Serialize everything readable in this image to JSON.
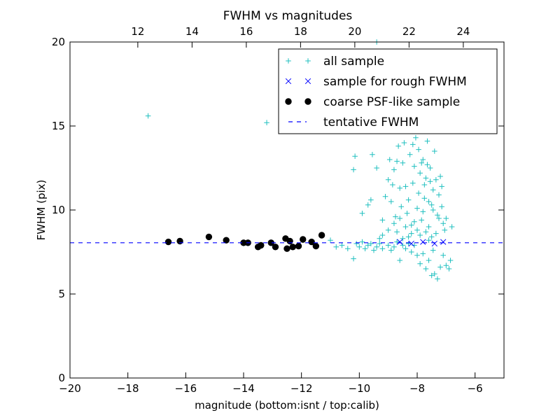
{
  "chart_data": {
    "type": "scatter",
    "title": "FWHM vs magnitudes",
    "xlabel": "magnitude (bottom:isnt / top:calib)",
    "ylabel": "FWHM (pix)",
    "xlim": [
      -20,
      -5
    ],
    "ylim": [
      0,
      20
    ],
    "top_xlim": [
      9.5,
      25.5
    ],
    "x_ticks": [
      "−20",
      "−18",
      "−16",
      "−14",
      "−12",
      "−10",
      "−8",
      "−6"
    ],
    "x_tick_values": [
      -20,
      -18,
      -16,
      -14,
      -12,
      -10,
      -8,
      -6
    ],
    "y_ticks": [
      "0",
      "5",
      "10",
      "15",
      "20"
    ],
    "y_tick_values": [
      0,
      5,
      10,
      15,
      20
    ],
    "top_x_ticks": [
      "12",
      "14",
      "16",
      "18",
      "20",
      "22",
      "24"
    ],
    "top_x_tick_values": [
      12,
      14,
      16,
      18,
      20,
      22,
      24
    ],
    "grid": false,
    "legend_position": "top-right",
    "series": [
      {
        "name": "all sample",
        "marker": "plus",
        "color": "#1fbfbf",
        "points": [
          [
            -17.3,
            15.6
          ],
          [
            -13.2,
            15.2
          ],
          [
            -9.4,
            20.0
          ],
          [
            -16.6,
            8.1
          ],
          [
            -16.2,
            8.1
          ],
          [
            -15.2,
            8.4
          ],
          [
            -14.6,
            8.2
          ],
          [
            -14.0,
            8.0
          ],
          [
            -13.85,
            8.0
          ],
          [
            -13.5,
            7.8
          ],
          [
            -13.4,
            7.9
          ],
          [
            -13.05,
            8.0
          ],
          [
            -12.9,
            7.8
          ],
          [
            -12.55,
            8.3
          ],
          [
            -12.5,
            7.7
          ],
          [
            -12.4,
            8.1
          ],
          [
            -12.3,
            7.8
          ],
          [
            -12.1,
            7.9
          ],
          [
            -11.95,
            8.2
          ],
          [
            -11.65,
            8.1
          ],
          [
            -11.5,
            7.9
          ],
          [
            -11.3,
            8.5
          ],
          [
            -11.0,
            8.2
          ],
          [
            -10.8,
            7.8
          ],
          [
            -10.6,
            7.9
          ],
          [
            -10.4,
            7.7
          ],
          [
            -10.2,
            7.1
          ],
          [
            -10.1,
            8.0
          ],
          [
            -10.0,
            7.8
          ],
          [
            -9.9,
            8.1
          ],
          [
            -9.8,
            7.7
          ],
          [
            -9.7,
            7.9
          ],
          [
            -9.6,
            8.0
          ],
          [
            -9.5,
            7.6
          ],
          [
            -9.4,
            7.8
          ],
          [
            -9.3,
            8.0
          ],
          [
            -9.2,
            7.7
          ],
          [
            -9.0,
            7.9
          ],
          [
            -8.9,
            7.6
          ],
          [
            -8.8,
            7.8
          ],
          [
            -8.7,
            8.1
          ],
          [
            -8.6,
            7.0
          ],
          [
            -8.5,
            7.9
          ],
          [
            -8.4,
            7.7
          ],
          [
            -8.3,
            8.0
          ],
          [
            -8.2,
            7.5
          ],
          [
            -8.1,
            7.9
          ],
          [
            -8.0,
            7.3
          ],
          [
            -7.9,
            6.8
          ],
          [
            -7.8,
            7.4
          ],
          [
            -7.7,
            6.5
          ],
          [
            -7.6,
            7.0
          ],
          [
            -7.5,
            6.1
          ],
          [
            -7.45,
            7.6
          ],
          [
            -7.4,
            6.2
          ],
          [
            -7.3,
            5.9
          ],
          [
            -7.2,
            6.6
          ],
          [
            -7.1,
            7.3
          ],
          [
            -7.0,
            6.7
          ],
          [
            -6.9,
            6.5
          ],
          [
            -6.85,
            7.0
          ],
          [
            -6.8,
            9.0
          ],
          [
            -10.2,
            12.4
          ],
          [
            -10.15,
            13.2
          ],
          [
            -9.9,
            9.8
          ],
          [
            -9.7,
            10.3
          ],
          [
            -9.6,
            10.6
          ],
          [
            -9.55,
            13.3
          ],
          [
            -9.4,
            12.5
          ],
          [
            -9.3,
            8.3
          ],
          [
            -9.2,
            9.4
          ],
          [
            -9.1,
            10.8
          ],
          [
            -9.0,
            11.8
          ],
          [
            -8.95,
            13.0
          ],
          [
            -8.9,
            10.5
          ],
          [
            -8.85,
            11.5
          ],
          [
            -8.8,
            12.4
          ],
          [
            -8.75,
            9.6
          ],
          [
            -8.7,
            12.9
          ],
          [
            -8.65,
            13.8
          ],
          [
            -8.6,
            11.3
          ],
          [
            -8.55,
            10.2
          ],
          [
            -8.5,
            12.8
          ],
          [
            -8.45,
            14.0
          ],
          [
            -8.4,
            11.4
          ],
          [
            -8.35,
            9.8
          ],
          [
            -8.3,
            10.6
          ],
          [
            -8.25,
            13.3
          ],
          [
            -8.2,
            9.1
          ],
          [
            -8.15,
            11.6
          ],
          [
            -8.1,
            12.6
          ],
          [
            -8.05,
            14.3
          ],
          [
            -8.0,
            10.1
          ],
          [
            -7.95,
            11.0
          ],
          [
            -7.9,
            12.2
          ],
          [
            -7.85,
            9.4
          ],
          [
            -7.8,
            13.0
          ],
          [
            -7.75,
            10.7
          ],
          [
            -7.7,
            11.9
          ],
          [
            -7.65,
            14.1
          ],
          [
            -7.6,
            9.0
          ],
          [
            -7.55,
            12.5
          ],
          [
            -7.5,
            10.3
          ],
          [
            -7.45,
            11.2
          ],
          [
            -7.4,
            13.5
          ],
          [
            -7.35,
            8.6
          ],
          [
            -7.3,
            9.7
          ],
          [
            -7.25,
            10.9
          ],
          [
            -7.2,
            12.0
          ],
          [
            -7.15,
            11.4
          ],
          [
            -7.1,
            9.2
          ],
          [
            -7.05,
            8.8
          ],
          [
            -7.0,
            9.5
          ],
          [
            -7.5,
            8.4
          ],
          [
            -7.6,
            8.2
          ],
          [
            -7.7,
            8.7
          ],
          [
            -7.8,
            9.9
          ],
          [
            -7.9,
            8.5
          ],
          [
            -8.0,
            8.8
          ],
          [
            -8.1,
            9.3
          ],
          [
            -8.2,
            8.6
          ],
          [
            -8.3,
            8.4
          ],
          [
            -8.4,
            9.0
          ],
          [
            -8.5,
            8.3
          ],
          [
            -8.6,
            9.5
          ],
          [
            -8.7,
            8.7
          ],
          [
            -8.8,
            9.2
          ],
          [
            -9.0,
            8.8
          ],
          [
            -9.2,
            8.5
          ],
          [
            -7.65,
            12.7
          ],
          [
            -7.55,
            11.7
          ],
          [
            -7.45,
            10.0
          ],
          [
            -7.35,
            11.8
          ],
          [
            -7.25,
            9.5
          ],
          [
            -7.15,
            10.2
          ],
          [
            -7.95,
            13.6
          ],
          [
            -8.15,
            13.9
          ],
          [
            -7.85,
            12.8
          ],
          [
            -7.75,
            11.5
          ],
          [
            -7.6,
            10.5
          ]
        ]
      },
      {
        "name": "sample for rough FWHM",
        "marker": "x",
        "color": "#0000ff",
        "points": [
          [
            -8.6,
            8.1
          ],
          [
            -8.2,
            8.0
          ],
          [
            -7.8,
            8.1
          ],
          [
            -7.4,
            8.0
          ],
          [
            -7.1,
            8.1
          ]
        ]
      },
      {
        "name": "coarse PSF-like sample",
        "marker": "circle",
        "color": "#000000",
        "points": [
          [
            -16.6,
            8.1
          ],
          [
            -16.2,
            8.15
          ],
          [
            -15.2,
            8.4
          ],
          [
            -14.6,
            8.2
          ],
          [
            -14.0,
            8.05
          ],
          [
            -13.85,
            8.05
          ],
          [
            -13.5,
            7.8
          ],
          [
            -13.4,
            7.9
          ],
          [
            -13.05,
            8.05
          ],
          [
            -12.9,
            7.8
          ],
          [
            -12.55,
            8.3
          ],
          [
            -12.5,
            7.7
          ],
          [
            -12.4,
            8.15
          ],
          [
            -12.3,
            7.8
          ],
          [
            -12.1,
            7.85
          ],
          [
            -11.95,
            8.25
          ],
          [
            -11.65,
            8.1
          ],
          [
            -11.5,
            7.85
          ],
          [
            -11.3,
            8.5
          ]
        ]
      },
      {
        "name": "tentative FWHM",
        "marker": "dashed-line",
        "color": "#0000ff",
        "y": 8.05
      }
    ]
  }
}
